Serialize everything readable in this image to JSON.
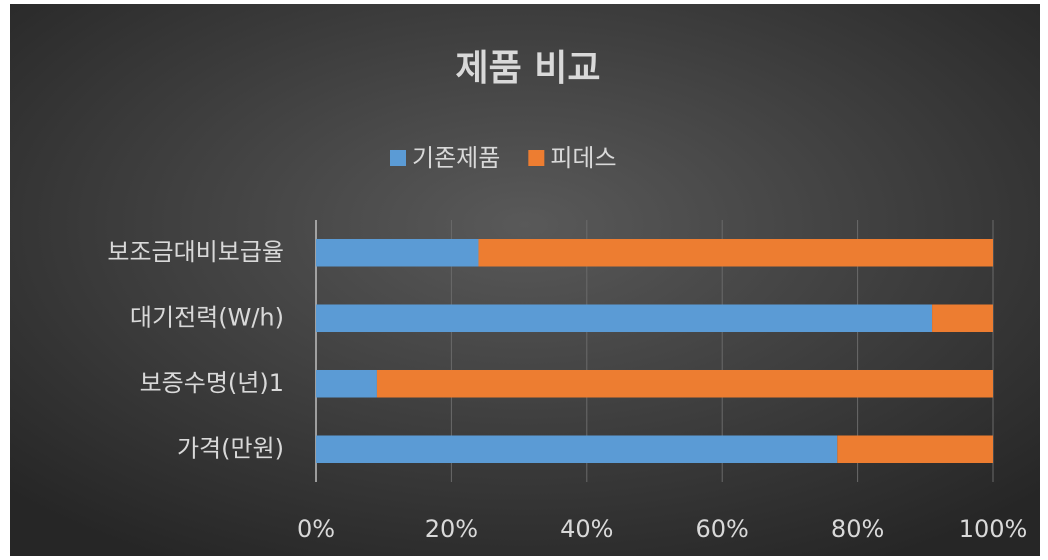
{
  "chart_data": {
    "type": "bar",
    "orientation": "horizontal",
    "stacked": "percent",
    "title": "제품 비교",
    "categories": [
      "보조금대비보급율",
      "대기전력(W/h)",
      "보증수명(년)1",
      "가격(만원)"
    ],
    "series": [
      {
        "name": "기존제품",
        "color": "#5b9bd5",
        "values": [
          24,
          91,
          9,
          77
        ]
      },
      {
        "name": "피데스",
        "color": "#ed7d31",
        "values": [
          76,
          9,
          91,
          23
        ]
      }
    ],
    "xlim": [
      0,
      100
    ],
    "xticks": [
      {
        "value": 0,
        "label": "0%"
      },
      {
        "value": 20,
        "label": "20%"
      },
      {
        "value": 40,
        "label": "40%"
      },
      {
        "value": 60,
        "label": "60%"
      },
      {
        "value": 80,
        "label": "80%"
      },
      {
        "value": 100,
        "label": "100%"
      }
    ],
    "grid": true,
    "legend": "top"
  }
}
